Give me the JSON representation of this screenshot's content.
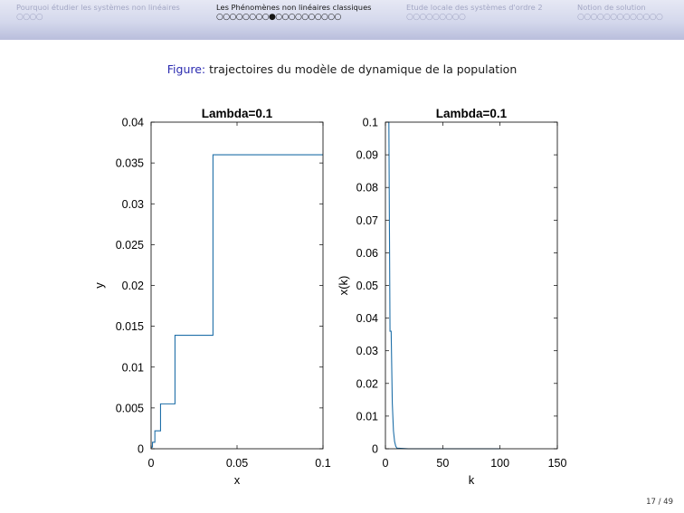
{
  "navigation": {
    "sections": [
      {
        "title": "Pourquoi étudier les systèmes non linéaires",
        "frames": 4,
        "current": -1
      },
      {
        "title": "Les Phénomènes non linéaires classiques",
        "frames": 19,
        "current": 8
      },
      {
        "title": "Etude locale des systèmes d'ordre 2",
        "frames": 9,
        "current": -1
      },
      {
        "title": "Notion de solution",
        "frames": 13,
        "current": -1
      }
    ],
    "active_color": "#151515",
    "inactive_color": "#a3a7c4"
  },
  "caption": {
    "label": "Figure:",
    "text": "trajectoires du modèle de dynamique de la population"
  },
  "page_number": "17 / 49",
  "chart_data": [
    {
      "type": "line",
      "step": true,
      "title": "Lambda=0.1",
      "xlabel": "x",
      "ylabel": "y",
      "xlim": [
        0,
        0.1
      ],
      "ylim": [
        0,
        0.04
      ],
      "xticks": [
        "0",
        "0.05",
        "0.1"
      ],
      "xtick_values": [
        0,
        0.05,
        0.1
      ],
      "yticks": [
        "0",
        "0.005",
        "0.01",
        "0.015",
        "0.02",
        "0.025",
        "0.03",
        "0.035",
        "0.04"
      ],
      "ytick_values": [
        0,
        0.005,
        0.01,
        0.015,
        0.02,
        0.025,
        0.03,
        0.035,
        0.04
      ],
      "color": "#1f6fa8",
      "series": [
        {
          "x": [
            0.0002,
            0.0008,
            0.0022,
            0.0055,
            0.0139,
            0.036,
            0.1
          ],
          "y": [
            0.0002,
            0.0008,
            0.0022,
            0.0055,
            0.0139,
            0.036,
            0.036
          ]
        }
      ]
    },
    {
      "type": "line",
      "title": "Lambda=0.1",
      "xlabel": "k",
      "ylabel": "x(k)",
      "xlim": [
        0,
        150
      ],
      "ylim": [
        0,
        0.1
      ],
      "xticks": [
        "0",
        "50",
        "100",
        "150"
      ],
      "xtick_values": [
        0,
        50,
        100,
        150
      ],
      "yticks": [
        "0",
        "0.01",
        "0.02",
        "0.03",
        "0.04",
        "0.05",
        "0.06",
        "0.07",
        "0.08",
        "0.09",
        "0.1"
      ],
      "ytick_values": [
        0,
        0.01,
        0.02,
        0.03,
        0.04,
        0.05,
        0.06,
        0.07,
        0.08,
        0.09,
        0.1
      ],
      "color": "#1f6fa8",
      "series": [
        {
          "x": [
            1,
            2,
            3,
            4,
            5,
            6,
            7,
            8,
            9,
            10,
            20,
            50,
            100
          ],
          "y": [
            0.1,
            0.1,
            0.1,
            0.036,
            0.036,
            0.0139,
            0.0055,
            0.0022,
            0.0008,
            0.0002,
            0,
            0,
            0
          ]
        }
      ]
    }
  ]
}
